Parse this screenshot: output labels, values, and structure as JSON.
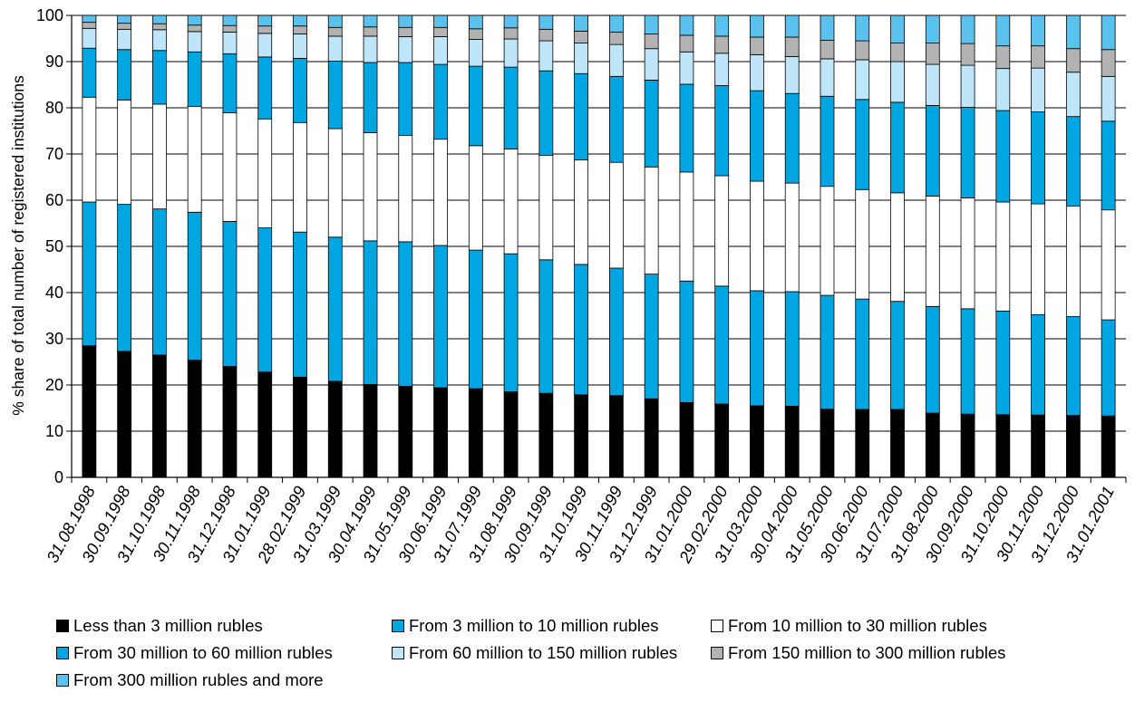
{
  "chart_data": {
    "type": "bar",
    "stacked": true,
    "title": "",
    "xlabel": "",
    "ylabel": "% share of total number of registered institutions",
    "ylim": [
      0,
      100
    ],
    "yticks": [
      0,
      10,
      20,
      30,
      40,
      50,
      60,
      70,
      80,
      90,
      100
    ],
    "grid": true,
    "legend_position": "bottom",
    "categories": [
      "31.08.1998",
      "30.09.1998",
      "31.10.1998",
      "30.11.1998",
      "31.12.1998",
      "31.01.1999",
      "28.02.1999",
      "31.03.1999",
      "30.04.1999",
      "31.05.1999",
      "30.06.1999",
      "31.07.1999",
      "31.08.1999",
      "30.09.1999",
      "31.10.1999",
      "30.11.1999",
      "31.12.1999",
      "31.01.2000",
      "29.02.2000",
      "31.03.2000",
      "30.04.2000",
      "31.05.2000",
      "30.06.2000",
      "31.07.2000",
      "31.08.2000",
      "30.09.2000",
      "31.10.2000",
      "30.11.2000",
      "31.12.2000",
      "31.01.2001"
    ],
    "series": [
      {
        "name": "Less than 3 million rubles",
        "color": "#000000",
        "values": [
          28.5,
          27.3,
          26.5,
          25.4,
          24.0,
          22.8,
          21.7,
          20.8,
          20.1,
          19.7,
          19.4,
          19.2,
          18.5,
          18.2,
          17.9,
          17.7,
          17.0,
          16.2,
          15.9,
          15.5,
          15.4,
          14.8,
          14.7,
          14.7,
          13.9,
          13.7,
          13.6,
          13.5,
          13.4,
          13.3
        ]
      },
      {
        "name": "From 3 million to 10 million rubles",
        "color": "#00A6E2",
        "values": [
          31.1,
          31.8,
          31.6,
          32.0,
          31.4,
          31.2,
          31.4,
          31.2,
          31.1,
          31.3,
          30.8,
          30.0,
          29.9,
          28.9,
          28.2,
          27.6,
          27.0,
          26.3,
          25.5,
          24.9,
          24.8,
          24.6,
          23.9,
          23.4,
          23.1,
          22.8,
          22.4,
          21.7,
          21.4,
          20.8
        ]
      },
      {
        "name": "From 10 million to 30 million rubles",
        "color": "#FFFFFF",
        "values": [
          22.7,
          22.6,
          22.7,
          22.9,
          23.5,
          23.6,
          23.7,
          23.5,
          23.4,
          23.0,
          23.0,
          22.6,
          22.7,
          22.6,
          22.6,
          22.9,
          23.2,
          23.6,
          23.9,
          23.7,
          23.5,
          23.6,
          23.7,
          23.5,
          23.9,
          24.0,
          23.6,
          24.0,
          23.9,
          23.8
        ]
      },
      {
        "name": "From 30 million to 60 million rubles",
        "color": "#00A6E2",
        "values": [
          10.6,
          10.9,
          11.6,
          11.8,
          12.8,
          13.4,
          13.9,
          14.6,
          15.2,
          15.8,
          16.2,
          17.2,
          17.7,
          18.3,
          18.7,
          18.6,
          18.8,
          19.0,
          19.5,
          19.6,
          19.4,
          19.5,
          19.5,
          19.6,
          19.6,
          19.6,
          19.8,
          19.9,
          19.4,
          19.2
        ]
      },
      {
        "name": "From 60 million to 150 million rubles",
        "color": "#BEE6F8",
        "values": [
          4.3,
          4.4,
          4.5,
          4.4,
          4.7,
          5.1,
          5.3,
          5.4,
          5.7,
          5.6,
          6.0,
          5.8,
          6.1,
          6.5,
          6.6,
          6.9,
          6.8,
          7.0,
          7.0,
          7.8,
          8.0,
          8.1,
          8.6,
          8.8,
          8.9,
          9.1,
          9.1,
          9.5,
          9.6,
          9.7
        ]
      },
      {
        "name": "From 150 million to 300 million rubles",
        "color": "#B2B2B2",
        "values": [
          1.3,
          1.3,
          1.3,
          1.4,
          1.4,
          1.6,
          1.7,
          1.9,
          2.0,
          2.0,
          2.0,
          2.3,
          2.4,
          2.5,
          2.6,
          2.7,
          3.2,
          3.6,
          3.7,
          3.8,
          4.2,
          4.0,
          4.1,
          4.0,
          4.6,
          4.7,
          4.9,
          4.8,
          5.1,
          5.8
        ]
      },
      {
        "name": "From 300 million rubles and more",
        "color": "#5BC2EE",
        "values": [
          1.5,
          1.7,
          1.8,
          2.1,
          2.2,
          2.3,
          2.3,
          2.6,
          2.5,
          2.6,
          2.6,
          2.9,
          2.7,
          3.0,
          3.4,
          3.6,
          4.0,
          4.3,
          4.5,
          4.7,
          4.7,
          5.4,
          5.5,
          6.0,
          6.0,
          6.1,
          6.6,
          6.6,
          7.2,
          7.4
        ]
      }
    ]
  }
}
